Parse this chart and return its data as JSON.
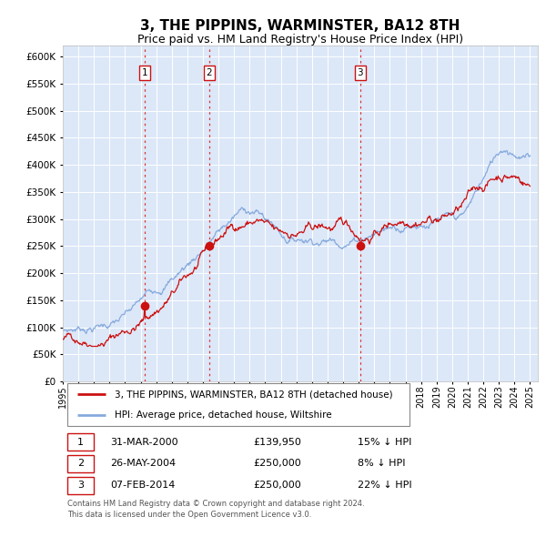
{
  "title": "3, THE PIPPINS, WARMINSTER, BA12 8TH",
  "subtitle": "Price paid vs. HM Land Registry's House Price Index (HPI)",
  "title_fontsize": 11,
  "subtitle_fontsize": 9,
  "ylim": [
    0,
    620000
  ],
  "yticks": [
    0,
    50000,
    100000,
    150000,
    200000,
    250000,
    300000,
    350000,
    400000,
    450000,
    500000,
    550000,
    600000
  ],
  "plot_bg_color": "#dce8f8",
  "grid_color": "#ffffff",
  "hpi_color": "#88aadd",
  "price_color": "#cc1111",
  "sale_marker_color": "#cc1111",
  "sale_marker_size": 7,
  "vline_color": "#dd3333",
  "purchases": [
    {
      "label": "1",
      "date_x": 2000.25,
      "price": 139950
    },
    {
      "label": "2",
      "date_x": 2004.4,
      "price": 250000
    },
    {
      "label": "3",
      "date_x": 2014.1,
      "price": 250000
    }
  ],
  "legend_entries": [
    {
      "label": "3, THE PIPPINS, WARMINSTER, BA12 8TH (detached house)",
      "color": "#cc1111"
    },
    {
      "label": "HPI: Average price, detached house, Wiltshire",
      "color": "#88aadd"
    }
  ],
  "table_rows": [
    {
      "num": "1",
      "date": "31-MAR-2000",
      "price": "£139,950",
      "pct": "15% ↓ HPI"
    },
    {
      "num": "2",
      "date": "26-MAY-2004",
      "price": "£250,000",
      "pct": "8% ↓ HPI"
    },
    {
      "num": "3",
      "date": "07-FEB-2014",
      "price": "£250,000",
      "pct": "22% ↓ HPI"
    }
  ],
  "footer": "Contains HM Land Registry data © Crown copyright and database right 2024.\nThis data is licensed under the Open Government Licence v3.0.",
  "xmin": 1995,
  "xmax": 2025.5,
  "xticks": [
    1995,
    1996,
    1997,
    1998,
    1999,
    2000,
    2001,
    2002,
    2003,
    2004,
    2005,
    2006,
    2007,
    2008,
    2009,
    2010,
    2011,
    2012,
    2013,
    2014,
    2015,
    2016,
    2017,
    2018,
    2019,
    2020,
    2021,
    2022,
    2023,
    2024,
    2025
  ]
}
